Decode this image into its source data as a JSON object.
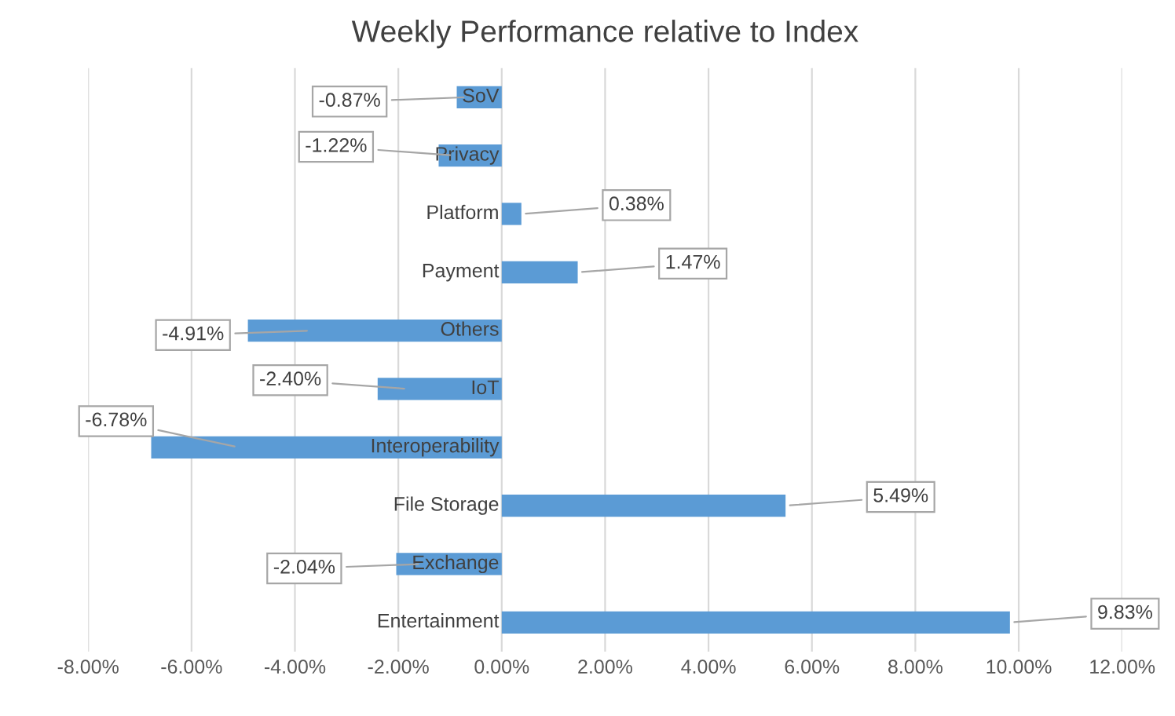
{
  "chart_data": {
    "type": "bar",
    "orientation": "horizontal",
    "title": "Weekly Performance relative to Index",
    "categories": [
      "SoV",
      "Privacy",
      "Platform",
      "Payment",
      "Others",
      "IoT",
      "Interoperability",
      "File Storage",
      "Exchange",
      "Entertainment"
    ],
    "values": [
      -0.87,
      -1.22,
      0.38,
      1.47,
      -4.91,
      -2.4,
      -6.78,
      5.49,
      -2.04,
      9.83
    ],
    "value_labels": [
      "-0.87%",
      "-1.22%",
      "0.38%",
      "1.47%",
      "-4.91%",
      "-2.40%",
      "-6.78%",
      "5.49%",
      "-2.04%",
      "9.83%"
    ],
    "color": "#5b9bd5",
    "xlim": [
      -8,
      12
    ],
    "xticks": [
      {
        "value": -8,
        "label": "-8.00%"
      },
      {
        "value": -6,
        "label": "-6.00%"
      },
      {
        "value": -4,
        "label": "-4.00%"
      },
      {
        "value": -2,
        "label": "-2.00%"
      },
      {
        "value": 0,
        "label": "0.00%"
      },
      {
        "value": 2,
        "label": "2.00%"
      },
      {
        "value": 4,
        "label": "4.00%"
      },
      {
        "value": 6,
        "label": "6.00%"
      },
      {
        "value": 8,
        "label": "8.00%"
      },
      {
        "value": 10,
        "label": "10.00%"
      },
      {
        "value": 12,
        "label": "12.00%"
      }
    ],
    "grid": "x"
  }
}
